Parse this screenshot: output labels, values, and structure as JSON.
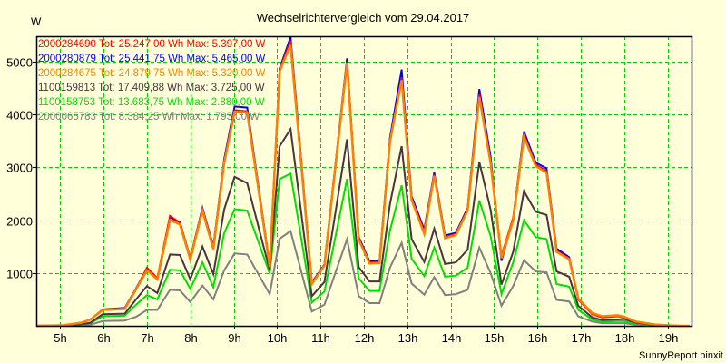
{
  "chart_data": {
    "type": "line",
    "title": "Wechselrichtervergleich vom 29.04.2017",
    "ylabel": "W",
    "xlabel": "",
    "footer": "SunnyReport pinxit",
    "xlim": [
      4.45,
      19.55
    ],
    "ylim": [
      0,
      5480
    ],
    "grid": true,
    "legend_position": "top-left",
    "yticks": [
      1000,
      2000,
      3000,
      4000,
      5000
    ],
    "ytick_labels": [
      "1000",
      "2000",
      "3000",
      "4000",
      "5000"
    ],
    "xticks": [
      5,
      6,
      7,
      8,
      9,
      10,
      11,
      12,
      13,
      14,
      15,
      16,
      17,
      18,
      19
    ],
    "xtick_labels": [
      "5h",
      "6h",
      "7h",
      "8h",
      "9h",
      "10h",
      "11h",
      "12h",
      "13h",
      "14h",
      "15h",
      "16h",
      "17h",
      "18h",
      "19h"
    ],
    "x": [
      4.46,
      5.08,
      5.5,
      5.7,
      5.98,
      6.49,
      6.75,
      7.0,
      7.24,
      7.53,
      7.76,
      8.0,
      8.28,
      8.53,
      8.78,
      9.02,
      9.31,
      9.83,
      10.06,
      10.31,
      10.8,
      11.09,
      11.61,
      11.88,
      12.13,
      12.36,
      12.6,
      12.87,
      13.1,
      13.39,
      13.62,
      13.87,
      14.12,
      14.39,
      14.66,
      14.92,
      15.17,
      15.44,
      15.69,
      15.96,
      16.21,
      16.44,
      16.73,
      16.94,
      17.26,
      17.49,
      17.85,
      18.0,
      18.26,
      18.74,
      19.25,
      19.5
    ],
    "series": [
      {
        "name": "2000065783",
        "legend": "2000065783 Tot: 8.384,25 Wh Max: 1.793,00 W",
        "color": "#808080",
        "values": [
          0,
          0,
          10,
          20,
          90,
          100,
          170,
          300,
          300,
          680,
          670,
          450,
          760,
          500,
          1050,
          1370,
          1350,
          600,
          1650,
          1793,
          270,
          400,
          1640,
          560,
          430,
          430,
          1100,
          1570,
          800,
          590,
          920,
          580,
          600,
          680,
          1480,
          1000,
          380,
          750,
          1240,
          1030,
          1010,
          490,
          460,
          180,
          80,
          50,
          50,
          50,
          20,
          5,
          0,
          0
        ]
      },
      {
        "name": "1100158753",
        "legend": "1100158753 Tot: 13.683,75 Wh Max: 2.880,00 W",
        "color": "#00e000",
        "values": [
          0,
          5,
          20,
          50,
          180,
          190,
          400,
          580,
          500,
          1060,
          1050,
          700,
          1200,
          730,
          1750,
          2210,
          2180,
          990,
          2780,
          2880,
          440,
          650,
          2780,
          900,
          660,
          660,
          1800,
          2660,
          1270,
          940,
          1480,
          930,
          950,
          1100,
          2370,
          1700,
          600,
          1200,
          2000,
          1680,
          1640,
          790,
          740,
          300,
          120,
          80,
          90,
          90,
          40,
          10,
          0,
          0
        ]
      },
      {
        "name": "1100159813",
        "legend": "1100159813 Tot: 17.409,88 Wh Max: 3.725,00 W",
        "color": "#4a3344",
        "values": [
          0,
          5,
          30,
          60,
          220,
          230,
          500,
          750,
          620,
          1350,
          1340,
          880,
          1500,
          980,
          2200,
          2820,
          2700,
          1050,
          3400,
          3725,
          560,
          830,
          3530,
          1110,
          840,
          840,
          2300,
          3400,
          1640,
          1210,
          1840,
          1170,
          1200,
          1440,
          3100,
          2200,
          780,
          1400,
          2550,
          2160,
          2100,
          1030,
          930,
          380,
          160,
          110,
          120,
          130,
          60,
          15,
          0,
          0
        ]
      },
      {
        "name": "2000280879",
        "legend": "2000280879 Tot: 25.441,75 Wh Max: 5.465,00 W",
        "color": "#0000ff",
        "values": [
          0,
          10,
          60,
          120,
          310,
          340,
          710,
          1080,
          900,
          2050,
          1960,
          1280,
          2230,
          1500,
          3150,
          4150,
          4130,
          1150,
          4870,
          5465,
          820,
          1160,
          5060,
          1680,
          1220,
          1230,
          3550,
          4850,
          2450,
          1820,
          2900,
          1710,
          1760,
          2230,
          4480,
          3200,
          1230,
          2020,
          3680,
          3090,
          2980,
          1460,
          1300,
          520,
          240,
          180,
          190,
          170,
          80,
          20,
          0,
          0
        ]
      },
      {
        "name": "2000284690",
        "legend": "2000284690 Tot: 25.247,00 Wh Max: 5.397,00 W",
        "color": "#ff0000",
        "values": [
          0,
          10,
          60,
          120,
          300,
          330,
          700,
          1100,
          900,
          2080,
          1950,
          1280,
          2200,
          1480,
          3100,
          4080,
          4060,
          1100,
          4850,
          5397,
          800,
          1150,
          5000,
          1650,
          1200,
          1200,
          3500,
          4700,
          2400,
          1780,
          2860,
          1680,
          1740,
          2200,
          4380,
          3100,
          1320,
          2050,
          3620,
          3050,
          2930,
          1420,
          1280,
          500,
          220,
          160,
          180,
          160,
          70,
          20,
          0,
          0
        ]
      },
      {
        "name": "2000284675",
        "legend": "2000284675 Tot: 24.879,75 Wh Max: 5.320,00 W",
        "color": "#ff8000",
        "values": [
          0,
          10,
          60,
          120,
          300,
          320,
          690,
          1050,
          880,
          2000,
          1920,
          1250,
          2180,
          1450,
          3080,
          4050,
          4040,
          1120,
          4820,
          5320,
          790,
          1140,
          4980,
          1630,
          1180,
          1190,
          3480,
          4650,
          2380,
          1740,
          2840,
          1660,
          1720,
          2180,
          4330,
          3080,
          1280,
          2000,
          3580,
          3020,
          2900,
          1400,
          1260,
          520,
          240,
          180,
          200,
          170,
          80,
          20,
          0,
          0
        ]
      }
    ],
    "legend_order": [
      "2000284690",
      "2000280879",
      "2000284675",
      "1100159813",
      "1100158753",
      "2000065783"
    ]
  }
}
